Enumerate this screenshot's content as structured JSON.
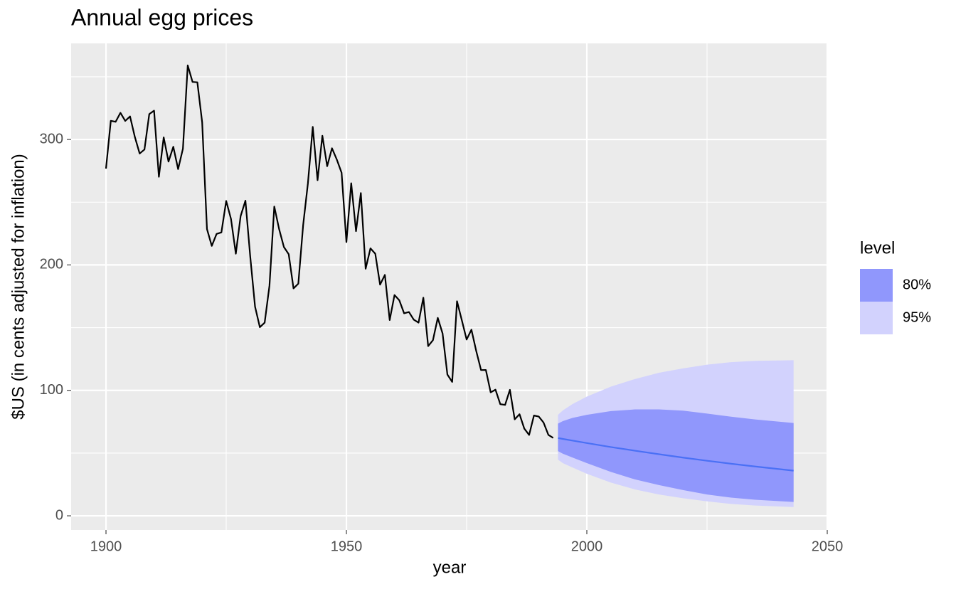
{
  "chart_data": {
    "type": "forecast",
    "title": "Annual egg prices",
    "x_label": "year",
    "y_label": "$US (in cents adjusted for inflation)",
    "xlim": [
      1892.75,
      2050
    ],
    "ylim": [
      -11.3,
      376.6
    ],
    "xticks": [
      1900,
      1950,
      2000,
      2050
    ],
    "yticks": [
      0,
      100,
      200,
      300
    ],
    "xminor": [
      1925,
      1975,
      2025
    ],
    "yminor": [
      50,
      150,
      250,
      350
    ],
    "grid": true,
    "series": [
      {
        "color": "#000000",
        "x": [
          1900,
          1901,
          1902,
          1903,
          1904,
          1905,
          1906,
          1907,
          1908,
          1909,
          1910,
          1911,
          1912,
          1913,
          1914,
          1915,
          1916,
          1917,
          1918,
          1919,
          1920,
          1921,
          1922,
          1923,
          1924,
          1925,
          1926,
          1927,
          1928,
          1929,
          1930,
          1931,
          1932,
          1933,
          1934,
          1935,
          1936,
          1937,
          1938,
          1939,
          1940,
          1941,
          1942,
          1943,
          1944,
          1945,
          1946,
          1947,
          1948,
          1949,
          1950,
          1951,
          1952,
          1953,
          1954,
          1955,
          1956,
          1957,
          1958,
          1959,
          1960,
          1961,
          1962,
          1963,
          1964,
          1965,
          1966,
          1967,
          1968,
          1969,
          1970,
          1971,
          1972,
          1973,
          1974,
          1975,
          1976,
          1977,
          1978,
          1979,
          1980,
          1981,
          1982,
          1983,
          1984,
          1985,
          1986,
          1987,
          1988,
          1989,
          1990,
          1991,
          1992,
          1993
        ],
        "values": [
          276.79,
          314.87,
          314.1,
          321.25,
          314.8,
          318.38,
          302.06,
          288.81,
          291.98,
          320.25,
          322.96,
          270.25,
          301.69,
          282.39,
          294.19,
          276.38,
          292.66,
          359.07,
          345.86,
          345.59,
          313.76,
          228.62,
          215.17,
          224.71,
          225.94,
          250.98,
          236.6,
          208.96,
          238.93,
          251.23,
          206.57,
          166.72,
          150.35,
          153.99,
          183.52,
          246.55,
          228.62,
          214.26,
          208.5,
          181.27,
          185.06,
          231.6,
          265.33,
          310.04,
          267.55,
          302.96,
          278.69,
          293.01,
          284.02,
          273.43,
          218.2,
          265.13,
          226.86,
          257.32,
          196.96,
          213.2,
          208.96,
          184.28,
          192.04,
          156.03,
          175.97,
          171.81,
          161.42,
          162.48,
          156.39,
          153.96,
          173.89,
          135.29,
          140.04,
          157.77,
          145.36,
          112.61,
          106.72,
          171.06,
          155.93,
          140.53,
          148.33,
          131.35,
          116.18,
          116.26,
          98.42,
          100.56,
          89.01,
          88.39,
          100.43,
          76.91,
          80.99,
          69.46,
          64.46,
          79.93,
          79.12,
          74.33,
          64.53,
          62.12
        ]
      }
    ],
    "forecast": {
      "color": "#4a70f5",
      "x": [
        1994,
        1995,
        1997,
        2000,
        2005,
        2010,
        2015,
        2020,
        2025,
        2030,
        2035,
        2043
      ],
      "mean": [
        62.0,
        61.3,
        60.0,
        58.0,
        54.8,
        51.9,
        49.1,
        46.4,
        43.9,
        41.5,
        39.3,
        36.0
      ]
    },
    "legend_title": "level",
    "intervals": [
      {
        "name": "80%",
        "color": "#9097fc",
        "lower": [
          51.6,
          49.5,
          46.5,
          42,
          35,
          29,
          24.5,
          20.5,
          17,
          14.5,
          12.8,
          11
        ],
        "upper": [
          73.5,
          75.5,
          78,
          80.5,
          83.5,
          84.8,
          84.8,
          83.8,
          81.5,
          79,
          76.8,
          74
        ]
      },
      {
        "name": "95%",
        "color": "#d2d2fd",
        "lower": [
          44.8,
          42,
          38.5,
          33.5,
          26.5,
          21,
          17,
          14,
          11.5,
          9.5,
          8.2,
          7
        ],
        "upper": [
          80.5,
          84,
          89,
          95,
          103,
          109,
          114,
          117.5,
          120.5,
          122.5,
          123.5,
          124
        ]
      }
    ]
  }
}
